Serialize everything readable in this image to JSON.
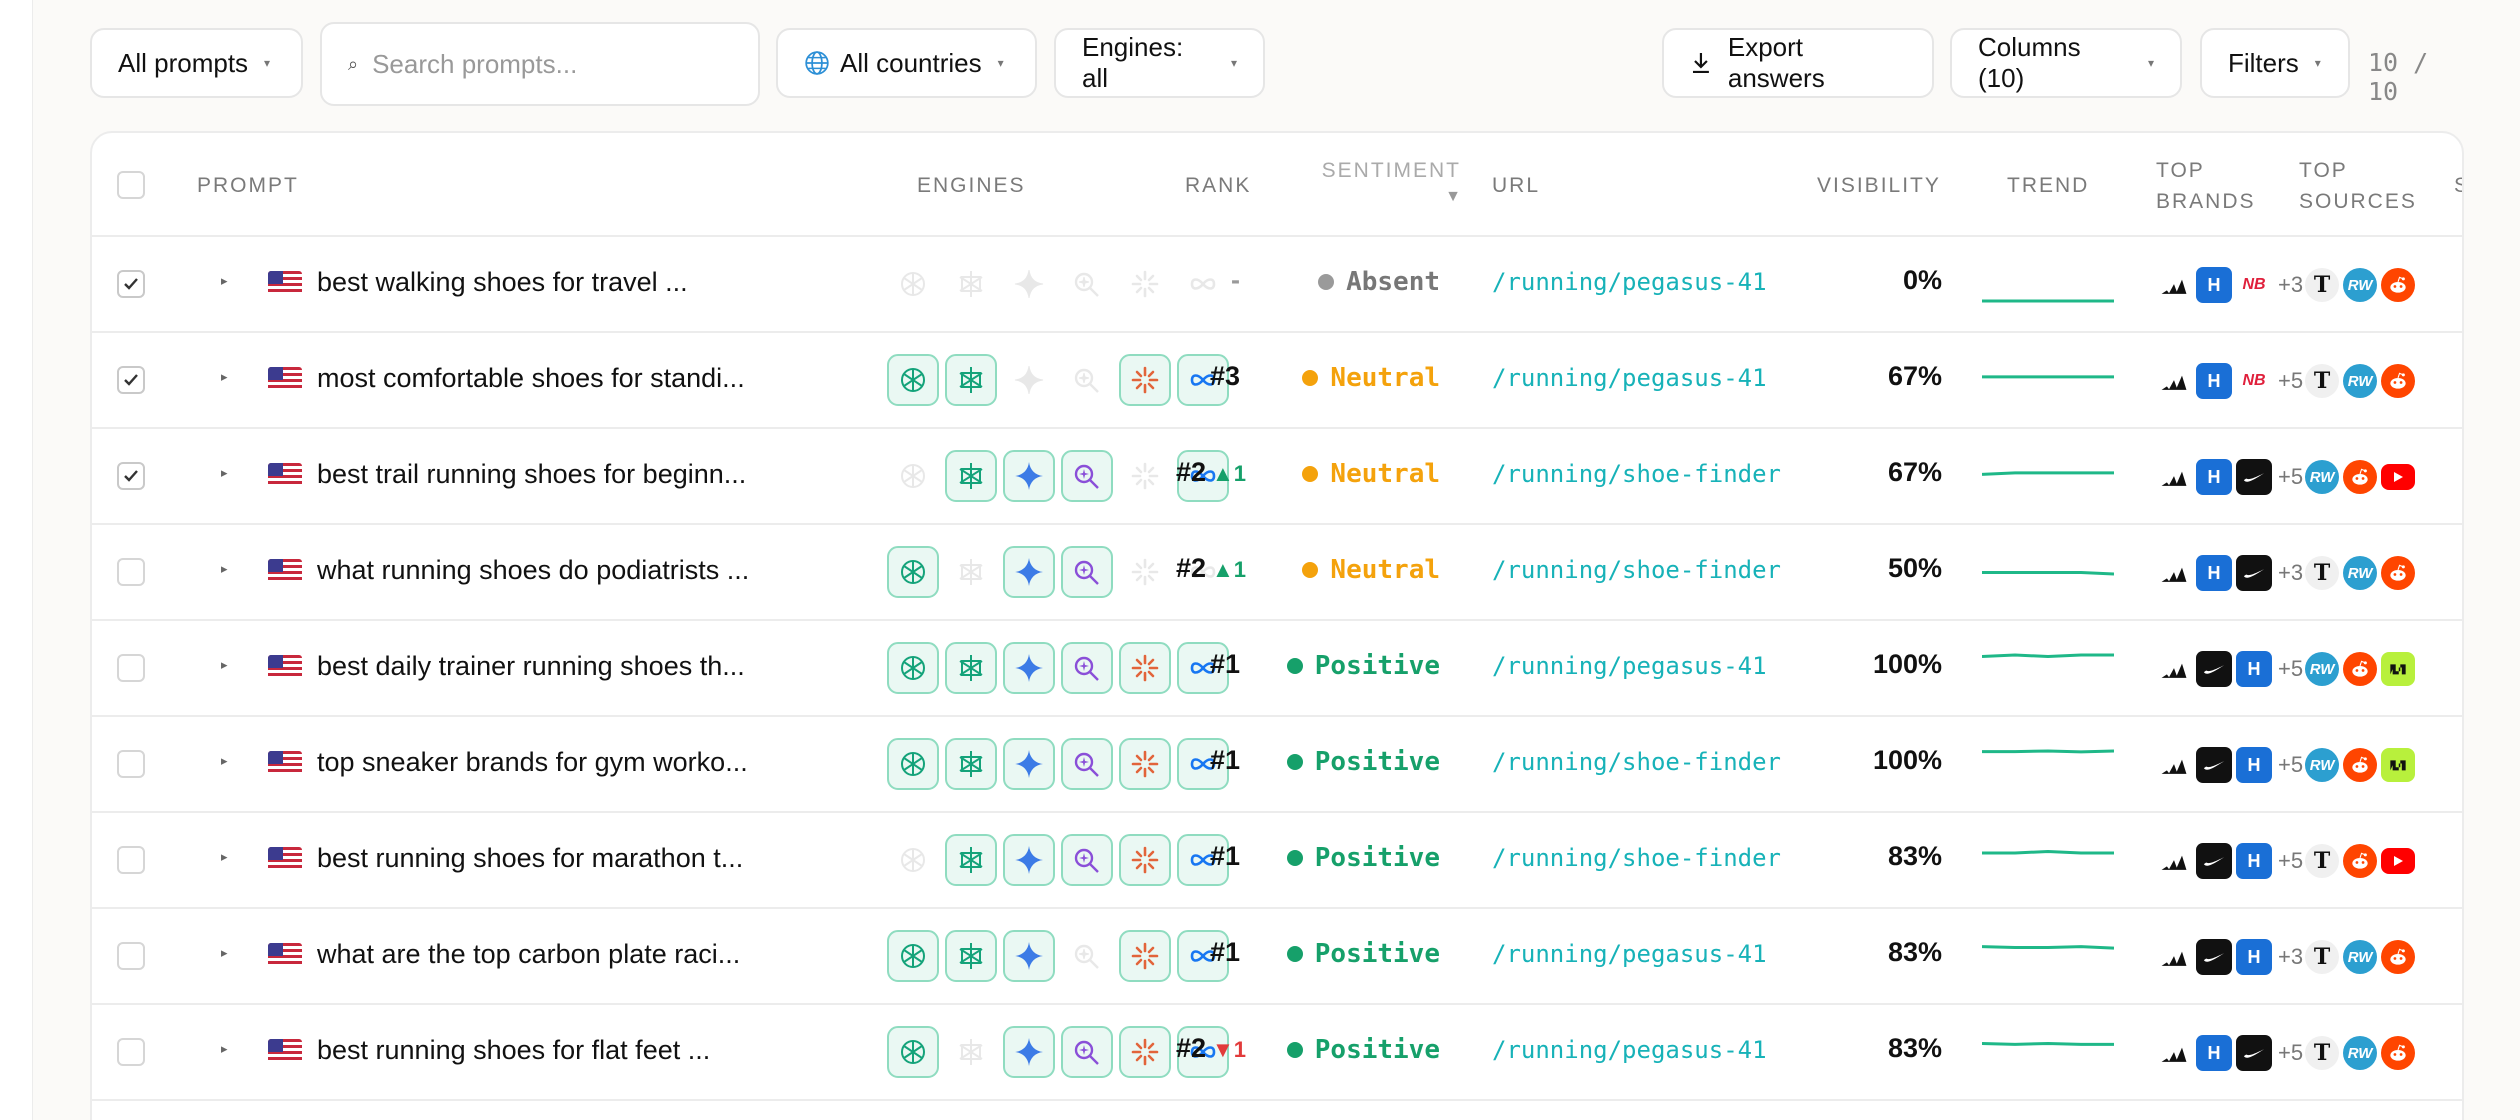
{
  "toolbar": {
    "prompts_filter": "All prompts",
    "search_placeholder": "Search prompts...",
    "countries_filter": "All countries",
    "engines_filter": "Engines: all",
    "export_label": "Export answers",
    "columns_label": "Columns (10)",
    "filters_label": "Filters",
    "count": "10 / 10"
  },
  "columns": {
    "prompt": "PROMPT",
    "engines": "ENGINES",
    "rank": "RANK",
    "sentiment": "SENTIMENT",
    "sentiment_sort": "▼",
    "url": "URL",
    "visibility": "VISIBILITY",
    "trend": "TREND",
    "top_brands_1": "TOP",
    "top_brands_2": "BRANDS",
    "top_sources_1": "TOP",
    "top_sources_2": "SOURCES",
    "extra": "S"
  },
  "colors": {
    "accent_teal": "#17b2b8",
    "positive": "#16a06a",
    "neutral": "#f4a20c",
    "absent": "#9a9a9a",
    "rank_up": "#16a06a",
    "rank_down": "#e23b3b",
    "trend_line": "#1fb888"
  },
  "engine_names": [
    "chatgpt-icon",
    "perplexity-icon",
    "gemini-icon",
    "ai-search-icon",
    "claude-icon",
    "meta-ai-icon"
  ],
  "rows": [
    {
      "checked": true,
      "prompt": "best walking shoes for travel ...",
      "engines": [
        0,
        0,
        0,
        0,
        0,
        0
      ],
      "rank": "-",
      "delta": "",
      "delta_dir": "",
      "sentiment": "Absent",
      "url": "/running/pegasus-41",
      "visibility": "0%",
      "trend": [
        0,
        0,
        0,
        0,
        0
      ],
      "brands": [
        "adidas",
        "hoka",
        "nb"
      ],
      "more": "+3",
      "sources": [
        "nyt",
        "rw",
        "reddit"
      ]
    },
    {
      "checked": true,
      "prompt": "most comfortable shoes for standi...",
      "engines": [
        1,
        1,
        0,
        0,
        1,
        1
      ],
      "rank": "#3",
      "delta": "",
      "delta_dir": "",
      "sentiment": "Neutral",
      "url": "/running/pegasus-41",
      "visibility": "67%",
      "trend": [
        67,
        67,
        67,
        67,
        67
      ],
      "brands": [
        "adidas",
        "hoka",
        "nb"
      ],
      "more": "+5",
      "sources": [
        "nyt",
        "rw",
        "reddit"
      ]
    },
    {
      "checked": true,
      "prompt": "best trail running shoes for beginn...",
      "engines": [
        0,
        1,
        1,
        1,
        0,
        1
      ],
      "rank": "#2",
      "delta": "1",
      "delta_dir": "up",
      "sentiment": "Neutral",
      "url": "/running/shoe-finder",
      "visibility": "67%",
      "trend": [
        62,
        67,
        67,
        67,
        67
      ],
      "brands": [
        "adidas",
        "hoka",
        "nike"
      ],
      "more": "+5",
      "sources": [
        "rw",
        "reddit",
        "yt"
      ]
    },
    {
      "checked": false,
      "prompt": "what running shoes do podiatrists ...",
      "engines": [
        1,
        0,
        1,
        1,
        0,
        0
      ],
      "rank": "#2",
      "delta": "1",
      "delta_dir": "up",
      "sentiment": "Neutral",
      "url": "/running/shoe-finder",
      "visibility": "50%",
      "trend": [
        55,
        55,
        55,
        55,
        50
      ],
      "brands": [
        "adidas",
        "hoka",
        "nike"
      ],
      "more": "+3",
      "sources": [
        "nyt",
        "rw",
        "reddit"
      ]
    },
    {
      "checked": false,
      "prompt": "best daily trainer running shoes th...",
      "engines": [
        1,
        1,
        1,
        1,
        1,
        1
      ],
      "rank": "#1",
      "delta": "",
      "delta_dir": "",
      "sentiment": "Positive",
      "url": "/running/pegasus-41",
      "visibility": "100%",
      "trend": [
        95,
        100,
        95,
        100,
        100
      ],
      "brands": [
        "adidas",
        "nike",
        "hoka"
      ],
      "more": "+5",
      "sources": [
        "rw",
        "reddit",
        "ng"
      ]
    },
    {
      "checked": false,
      "prompt": "top sneaker brands for gym worko...",
      "engines": [
        1,
        1,
        1,
        1,
        1,
        1
      ],
      "rank": "#1",
      "delta": "",
      "delta_dir": "",
      "sentiment": "Positive",
      "url": "/running/shoe-finder",
      "visibility": "100%",
      "trend": [
        98,
        98,
        100,
        97,
        100
      ],
      "brands": [
        "adidas",
        "nike",
        "hoka"
      ],
      "more": "+5",
      "sources": [
        "rw",
        "reddit",
        "ng"
      ]
    },
    {
      "checked": false,
      "prompt": "best running shoes for marathon t...",
      "engines": [
        0,
        1,
        1,
        1,
        1,
        1
      ],
      "rank": "#1",
      "delta": "",
      "delta_dir": "",
      "sentiment": "Positive",
      "url": "/running/shoe-finder",
      "visibility": "83%",
      "trend": [
        80,
        80,
        85,
        80,
        80
      ],
      "brands": [
        "adidas",
        "nike",
        "hoka"
      ],
      "more": "+5",
      "sources": [
        "nyt",
        "reddit",
        "yt"
      ]
    },
    {
      "checked": false,
      "prompt": "what are the top carbon plate raci...",
      "engines": [
        1,
        1,
        1,
        0,
        1,
        1
      ],
      "rank": "#1",
      "delta": "",
      "delta_dir": "",
      "sentiment": "Positive",
      "url": "/running/pegasus-41",
      "visibility": "83%",
      "trend": [
        88,
        85,
        85,
        88,
        83
      ],
      "brands": [
        "adidas",
        "nike",
        "hoka"
      ],
      "more": "+3",
      "sources": [
        "nyt",
        "rw",
        "reddit"
      ]
    },
    {
      "checked": false,
      "prompt": "best running shoes for flat feet ...",
      "engines": [
        1,
        0,
        1,
        1,
        1,
        1
      ],
      "rank": "#2",
      "delta": "1",
      "delta_dir": "down",
      "sentiment": "Positive",
      "url": "/running/pegasus-41",
      "visibility": "83%",
      "trend": [
        85,
        82,
        85,
        82,
        82
      ],
      "brands": [
        "adidas",
        "hoka",
        "nike"
      ],
      "more": "+5",
      "sources": [
        "nyt",
        "rw",
        "reddit"
      ]
    }
  ]
}
